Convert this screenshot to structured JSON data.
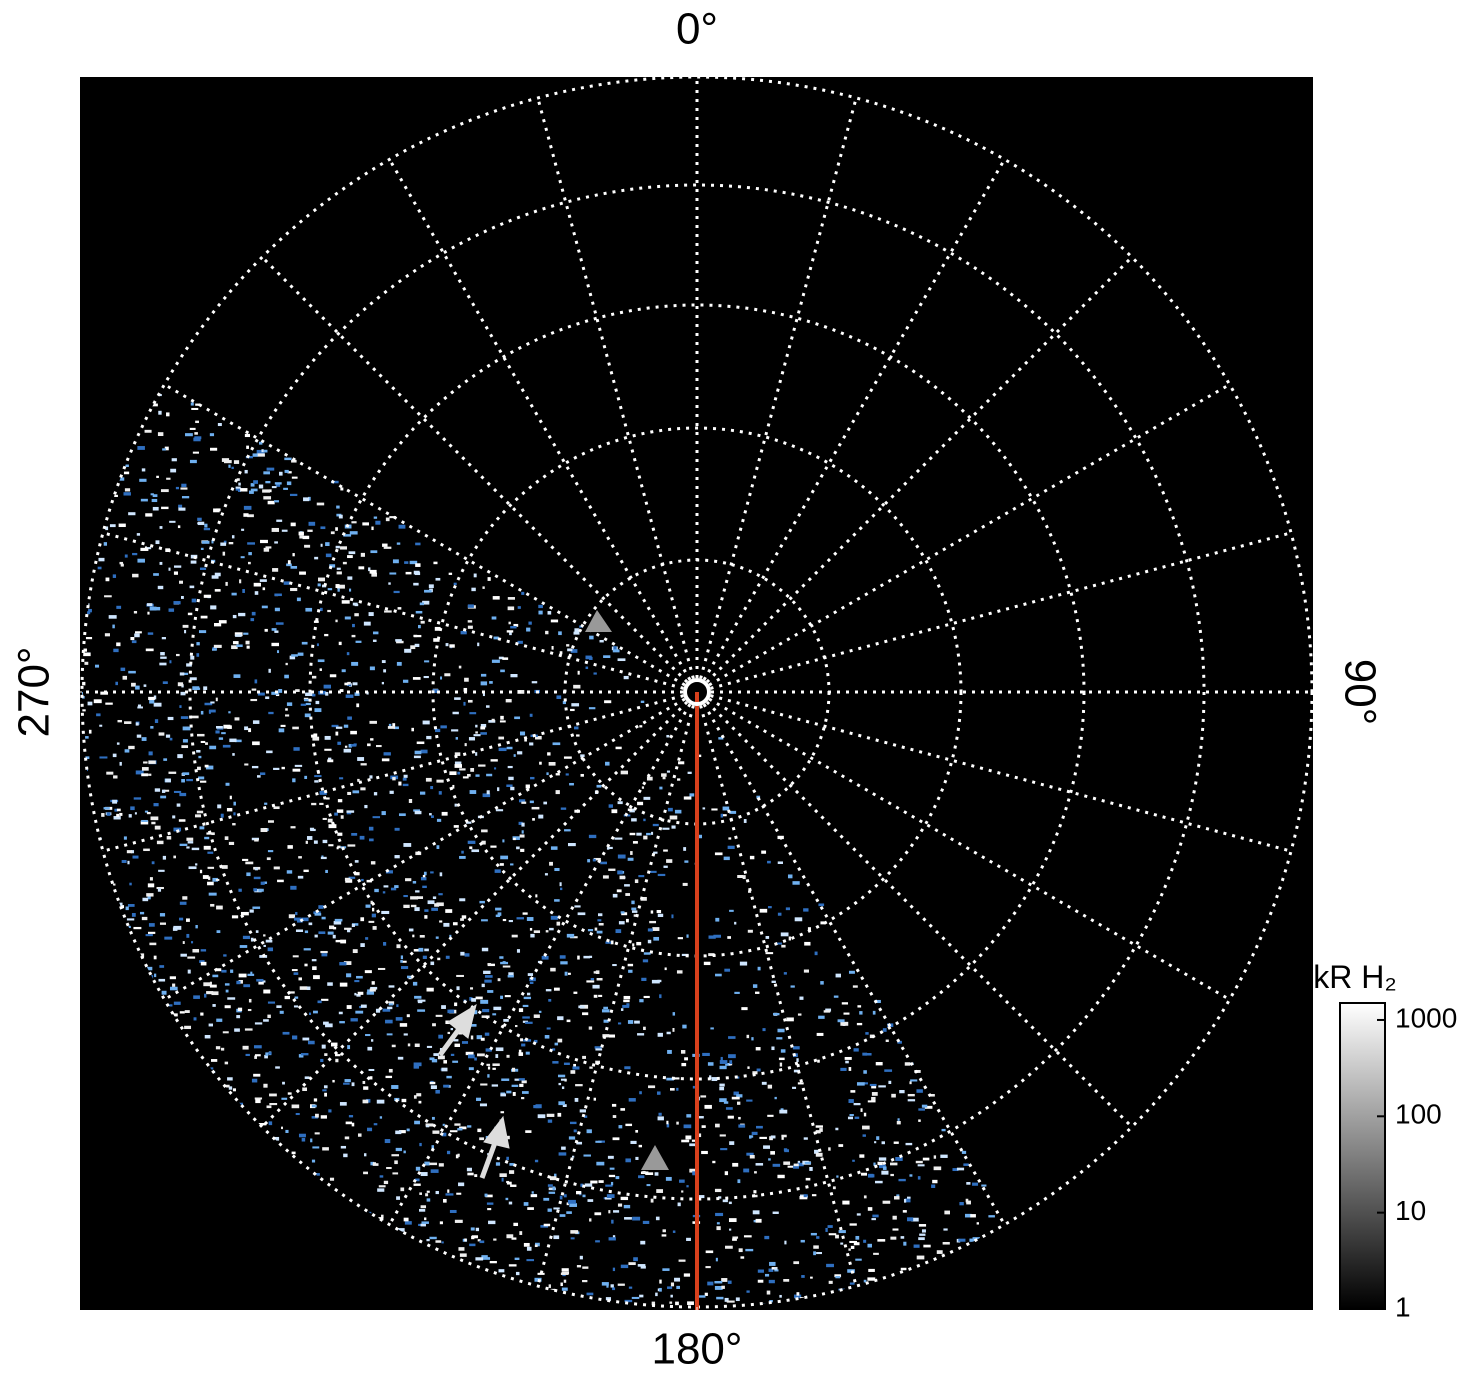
{
  "chart_data": {
    "type": "polar-image",
    "angle_ticks": [
      {
        "value": 0,
        "label": "0°"
      },
      {
        "value": 90,
        "label": "90°"
      },
      {
        "value": 180,
        "label": "180°"
      },
      {
        "value": 270,
        "label": "270°"
      }
    ],
    "colorbar": {
      "title": "kR H₂",
      "log_scale": true,
      "clim": [
        1,
        1500
      ],
      "ticks": [
        1,
        10,
        100,
        1000
      ]
    }
  }
}
